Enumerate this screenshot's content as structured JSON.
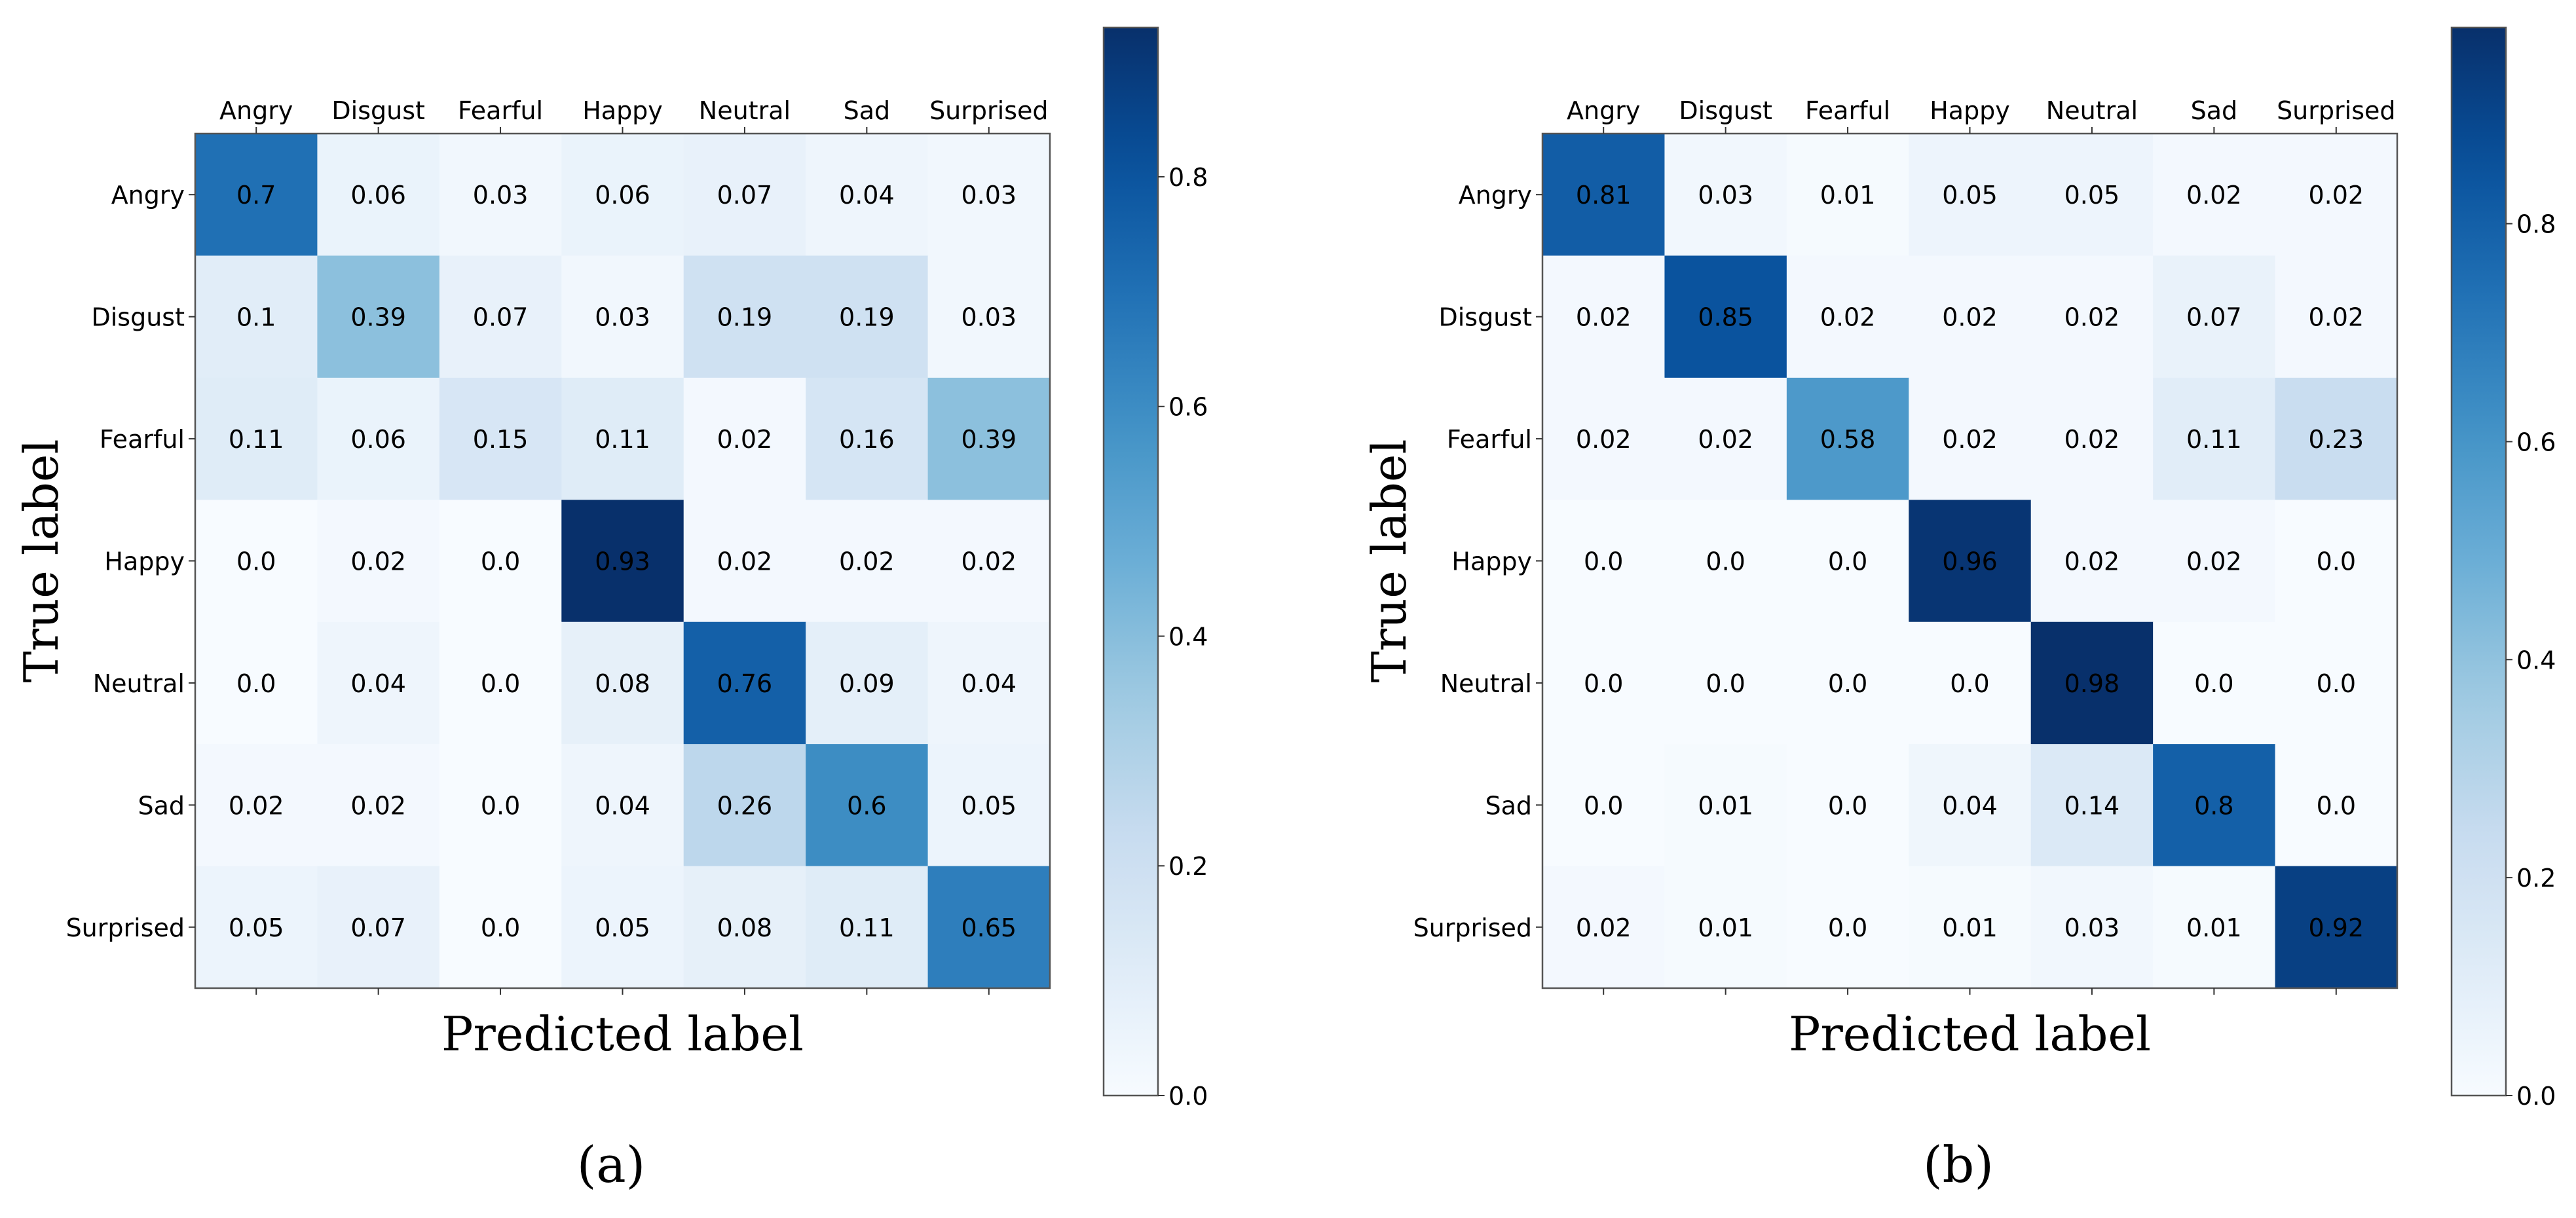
{
  "chart_data": [
    {
      "type": "heatmap",
      "panel_label": "(a)",
      "xlabel": "Predicted label",
      "ylabel": "True label",
      "x_categories": [
        "Angry",
        "Disgust",
        "Fearful",
        "Happy",
        "Neutral",
        "Sad",
        "Surprised"
      ],
      "y_categories": [
        "Angry",
        "Disgust",
        "Fearful",
        "Happy",
        "Neutral",
        "Sad",
        "Surprised"
      ],
      "values": [
        [
          "0.7",
          "0.06",
          "0.03",
          "0.06",
          "0.07",
          "0.04",
          "0.03"
        ],
        [
          "0.1",
          "0.39",
          "0.07",
          "0.03",
          "0.19",
          "0.19",
          "0.03"
        ],
        [
          "0.11",
          "0.06",
          "0.15",
          "0.11",
          "0.02",
          "0.16",
          "0.39"
        ],
        [
          "0.0",
          "0.02",
          "0.0",
          "0.93",
          "0.02",
          "0.02",
          "0.02"
        ],
        [
          "0.0",
          "0.04",
          "0.0",
          "0.08",
          "0.76",
          "0.09",
          "0.04"
        ],
        [
          "0.02",
          "0.02",
          "0.0",
          "0.04",
          "0.26",
          "0.6",
          "0.05"
        ],
        [
          "0.05",
          "0.07",
          "0.0",
          "0.05",
          "0.08",
          "0.11",
          "0.65"
        ]
      ],
      "colorbar": {
        "min": 0.0,
        "max": 0.93,
        "ticks": [
          "0.0",
          "0.2",
          "0.4",
          "0.6",
          "0.8"
        ],
        "colormap": "Blues"
      }
    },
    {
      "type": "heatmap",
      "panel_label": "(b)",
      "xlabel": "Predicted label",
      "ylabel": "True label",
      "x_categories": [
        "Angry",
        "Disgust",
        "Fearful",
        "Happy",
        "Neutral",
        "Sad",
        "Surprised"
      ],
      "y_categories": [
        "Angry",
        "Disgust",
        "Fearful",
        "Happy",
        "Neutral",
        "Sad",
        "Surprised"
      ],
      "values": [
        [
          "0.81",
          "0.03",
          "0.01",
          "0.05",
          "0.05",
          "0.02",
          "0.02"
        ],
        [
          "0.02",
          "0.85",
          "0.02",
          "0.02",
          "0.02",
          "0.07",
          "0.02"
        ],
        [
          "0.02",
          "0.02",
          "0.58",
          "0.02",
          "0.02",
          "0.11",
          "0.23"
        ],
        [
          "0.0",
          "0.0",
          "0.0",
          "0.96",
          "0.02",
          "0.02",
          "0.0"
        ],
        [
          "0.0",
          "0.0",
          "0.0",
          "0.0",
          "0.98",
          "0.0",
          "0.0"
        ],
        [
          "0.0",
          "0.01",
          "0.0",
          "0.04",
          "0.14",
          "0.8",
          "0.0"
        ],
        [
          "0.02",
          "0.01",
          "0.0",
          "0.01",
          "0.03",
          "0.01",
          "0.92"
        ]
      ],
      "colorbar": {
        "min": 0.0,
        "max": 0.98,
        "ticks": [
          "0.0",
          "0.2",
          "0.4",
          "0.6",
          "0.8"
        ],
        "colormap": "Blues"
      }
    }
  ]
}
